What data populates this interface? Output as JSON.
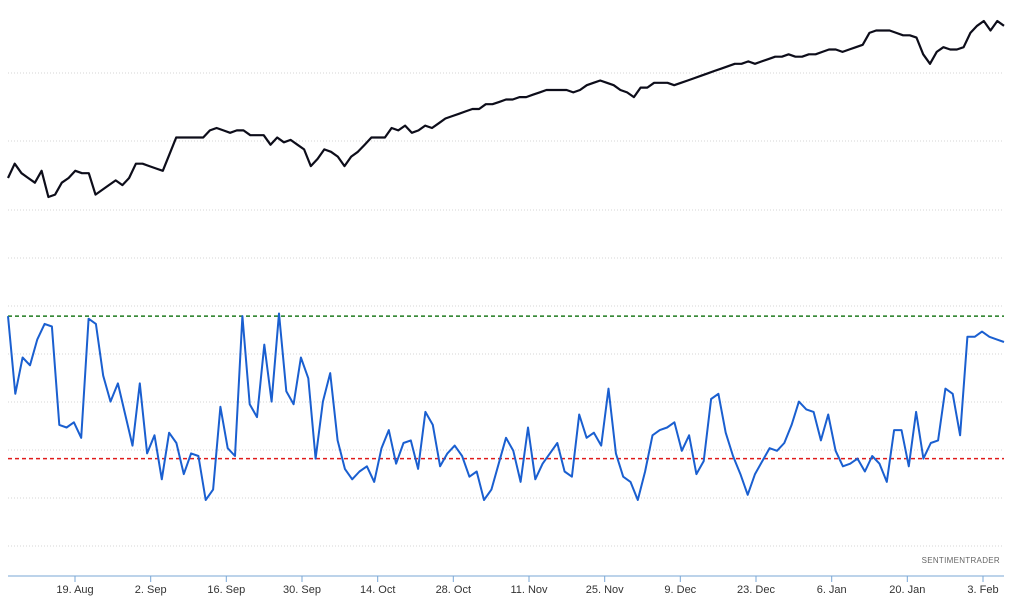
{
  "credit": "SENTIMENTRADER",
  "colors": {
    "price_line": "#0d0d1a",
    "indicator_line": "#1a5fd0",
    "upper_threshold": "#1e7a1e",
    "lower_threshold": "#e01b1b",
    "grid": "#d4d4d4",
    "axis": "#7aa7d6"
  },
  "chart_data": [
    {
      "type": "line",
      "title": "",
      "grid": true,
      "y_scale": "unlabeled",
      "series": [
        {
          "values": [
            44,
            50,
            46,
            44,
            42,
            47,
            36,
            37,
            42,
            44,
            47,
            46,
            46,
            37,
            39,
            41,
            43,
            41,
            44,
            50,
            50,
            49,
            48,
            47,
            54,
            61,
            61,
            61,
            61,
            61,
            64,
            65,
            64,
            63,
            64,
            64,
            62,
            62,
            62,
            58,
            61,
            59,
            60,
            58,
            56,
            49,
            52,
            56,
            55,
            53,
            49,
            53,
            55,
            58,
            61,
            61,
            61,
            65,
            64,
            66,
            63,
            64,
            66,
            65,
            67,
            69,
            70,
            71,
            72,
            73,
            73,
            75,
            75,
            76,
            77,
            77,
            78,
            78,
            79,
            80,
            81,
            81,
            81,
            81,
            80,
            81,
            83,
            84,
            85,
            84,
            83,
            81,
            80,
            78,
            82,
            82,
            84,
            84,
            84,
            83,
            84,
            85,
            86,
            87,
            88,
            89,
            90,
            91,
            92,
            92,
            93,
            92,
            93,
            94,
            95,
            95,
            96,
            95,
            95,
            96,
            96,
            97,
            98,
            98,
            97,
            98,
            99,
            100,
            105,
            106,
            106,
            106,
            105,
            104,
            104,
            103,
            96,
            92,
            97,
            99,
            98,
            98,
            99,
            105,
            108,
            110,
            106,
            110,
            108
          ],
          "color": "#0d0d1a"
        }
      ]
    },
    {
      "type": "line",
      "title": "",
      "grid": true,
      "y_scale": "unlabeled",
      "x_tick_labels": [
        "19. Aug",
        "2. Sep",
        "16. Sep",
        "30. Sep",
        "14. Oct",
        "28. Oct",
        "11. Nov",
        "25. Nov",
        "9. Dec",
        "23. Dec",
        "6. Jan",
        "20. Jan",
        "3. Feb"
      ],
      "reference_lines": [
        {
          "value": 71,
          "color": "#1e7a1e",
          "style": "dashed"
        },
        {
          "value": 16,
          "color": "#e01b1b",
          "style": "dashed"
        }
      ],
      "series": [
        {
          "values": [
            71,
            41,
            55,
            52,
            62,
            68,
            67,
            29,
            28,
            30,
            24,
            70,
            68,
            48,
            38,
            45,
            33,
            21,
            45,
            18,
            25,
            8,
            26,
            22,
            10,
            18,
            17,
            0,
            4,
            36,
            20,
            17,
            71,
            37,
            32,
            60,
            38,
            72,
            42,
            37,
            55,
            47,
            16,
            38,
            49,
            23,
            12,
            8,
            11,
            13,
            7,
            20,
            27,
            14,
            22,
            23,
            12,
            34,
            29,
            13,
            18,
            21,
            17,
            9,
            11,
            0,
            4,
            14,
            24,
            19,
            7,
            28,
            8,
            14,
            18,
            22,
            11,
            9,
            33,
            24,
            26,
            21,
            43,
            18,
            9,
            7,
            0,
            11,
            25,
            27,
            28,
            30,
            19,
            25,
            10,
            15,
            39,
            41,
            26,
            17,
            10,
            2,
            10,
            15,
            20,
            19,
            22,
            29,
            38,
            35,
            34,
            23,
            33,
            19,
            13,
            14,
            16,
            11,
            17,
            14,
            7,
            27,
            27,
            13,
            34,
            16,
            22,
            23,
            43,
            41,
            25,
            63,
            63,
            65,
            63,
            62,
            61
          ],
          "color": "#1a5fd0"
        }
      ]
    }
  ]
}
